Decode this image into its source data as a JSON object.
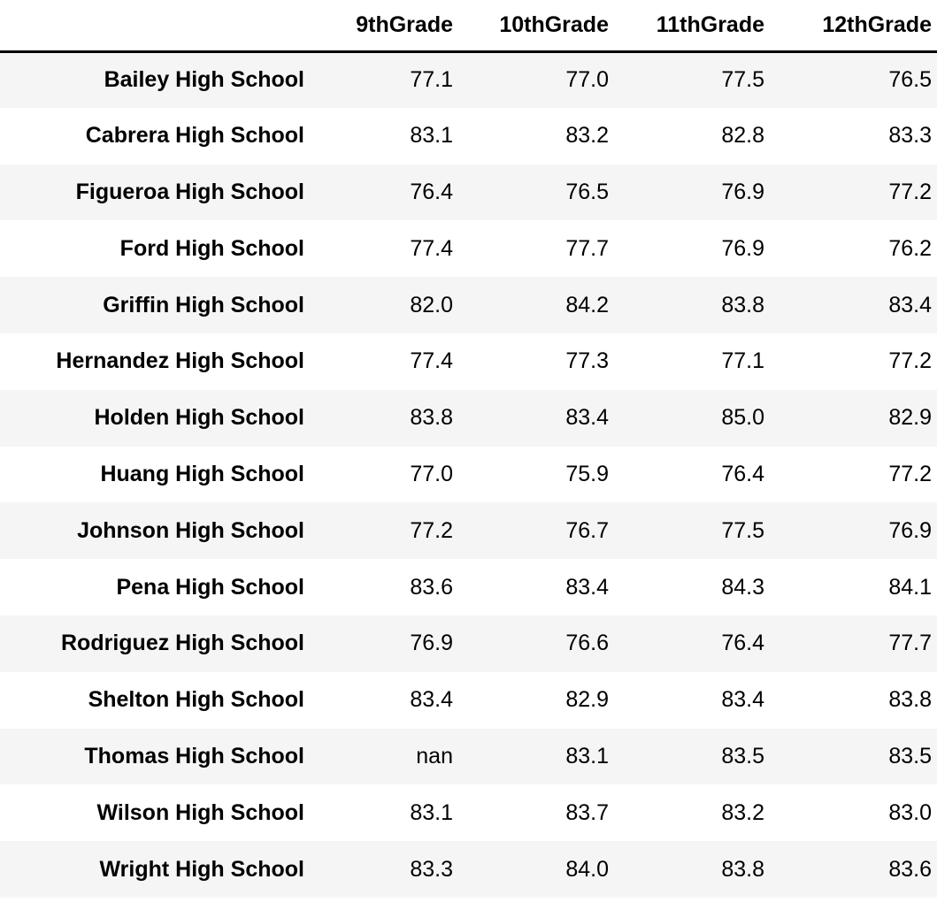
{
  "table": {
    "index_header": "",
    "columns": [
      "9thGrade",
      "10thGrade",
      "11thGrade",
      "12thGrade"
    ],
    "rows": [
      {
        "school": "Bailey High School",
        "values": [
          "77.1",
          "77.0",
          "77.5",
          "76.5"
        ]
      },
      {
        "school": "Cabrera High School",
        "values": [
          "83.1",
          "83.2",
          "82.8",
          "83.3"
        ]
      },
      {
        "school": "Figueroa High School",
        "values": [
          "76.4",
          "76.5",
          "76.9",
          "77.2"
        ]
      },
      {
        "school": "Ford High School",
        "values": [
          "77.4",
          "77.7",
          "76.9",
          "76.2"
        ]
      },
      {
        "school": "Griffin High School",
        "values": [
          "82.0",
          "84.2",
          "83.8",
          "83.4"
        ]
      },
      {
        "school": "Hernandez High School",
        "values": [
          "77.4",
          "77.3",
          "77.1",
          "77.2"
        ]
      },
      {
        "school": "Holden High School",
        "values": [
          "83.8",
          "83.4",
          "85.0",
          "82.9"
        ]
      },
      {
        "school": "Huang High School",
        "values": [
          "77.0",
          "75.9",
          "76.4",
          "77.2"
        ]
      },
      {
        "school": "Johnson High School",
        "values": [
          "77.2",
          "76.7",
          "77.5",
          "76.9"
        ]
      },
      {
        "school": "Pena High School",
        "values": [
          "83.6",
          "83.4",
          "84.3",
          "84.1"
        ]
      },
      {
        "school": "Rodriguez High School",
        "values": [
          "76.9",
          "76.6",
          "76.4",
          "77.7"
        ]
      },
      {
        "school": "Shelton High School",
        "values": [
          "83.4",
          "82.9",
          "83.4",
          "83.8"
        ]
      },
      {
        "school": "Thomas High School",
        "values": [
          "nan",
          "83.1",
          "83.5",
          "83.5"
        ]
      },
      {
        "school": "Wilson High School",
        "values": [
          "83.1",
          "83.7",
          "83.2",
          "83.0"
        ]
      },
      {
        "school": "Wright High School",
        "values": [
          "83.3",
          "84.0",
          "83.8",
          "83.6"
        ]
      }
    ]
  }
}
